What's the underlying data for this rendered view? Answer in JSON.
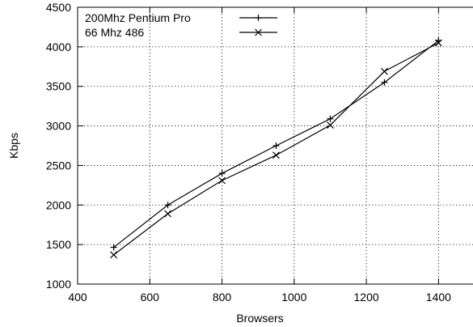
{
  "chart_data": {
    "type": "line",
    "xlabel": "Browsers",
    "ylabel": "Kbps",
    "xlim": [
      400,
      1500
    ],
    "ylim": [
      1000,
      4500
    ],
    "x_ticks": [
      400,
      600,
      800,
      1000,
      1200,
      1400
    ],
    "y_ticks": [
      1000,
      1500,
      2000,
      2500,
      3000,
      3500,
      4000,
      4500
    ],
    "grid": true,
    "legend_position": "top-left",
    "series": [
      {
        "name": "200Mhz Pentium Pro",
        "marker": "plus",
        "color": "#000000",
        "points": [
          {
            "x": 500,
            "y": 1465
          },
          {
            "x": 650,
            "y": 2000
          },
          {
            "x": 800,
            "y": 2400
          },
          {
            "x": 950,
            "y": 2750
          },
          {
            "x": 1100,
            "y": 3090
          },
          {
            "x": 1250,
            "y": 3550
          },
          {
            "x": 1400,
            "y": 4080
          }
        ]
      },
      {
        "name": "66 Mhz 486",
        "marker": "cross",
        "color": "#000000",
        "points": [
          {
            "x": 500,
            "y": 1370
          },
          {
            "x": 650,
            "y": 1890
          },
          {
            "x": 800,
            "y": 2310
          },
          {
            "x": 950,
            "y": 2630
          },
          {
            "x": 1100,
            "y": 3010
          },
          {
            "x": 1250,
            "y": 3690
          },
          {
            "x": 1400,
            "y": 4050
          }
        ]
      }
    ]
  }
}
